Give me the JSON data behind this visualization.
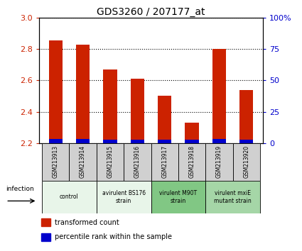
{
  "title": "GDS3260 / 207177_at",
  "samples": [
    "GSM213913",
    "GSM213914",
    "GSM213915",
    "GSM213916",
    "GSM213917",
    "GSM213918",
    "GSM213919",
    "GSM213920"
  ],
  "red_values": [
    2.855,
    2.825,
    2.67,
    2.61,
    2.5,
    2.33,
    2.8,
    2.54
  ],
  "blue_values_pct": [
    3.5,
    3.0,
    2.5,
    2.5,
    2.5,
    2.5,
    3.5,
    2.5
  ],
  "ylim_left": [
    2.2,
    3.0
  ],
  "ylim_right": [
    0,
    100
  ],
  "yticks_left": [
    2.2,
    2.4,
    2.6,
    2.8,
    3.0
  ],
  "yticks_right": [
    0,
    25,
    50,
    75,
    100
  ],
  "ytick_labels_right": [
    "0",
    "25",
    "50",
    "75",
    "100%"
  ],
  "groups": [
    {
      "label": "control",
      "start": 0,
      "end": 2,
      "color": "#e8f5e9"
    },
    {
      "label": "avirulent BS176\nstrain",
      "start": 2,
      "end": 4,
      "color": "#e8f5e9"
    },
    {
      "label": "virulent M90T\nstrain",
      "start": 4,
      "end": 6,
      "color": "#81c784"
    },
    {
      "label": "virulent mxiE\nmutant strain",
      "start": 6,
      "end": 8,
      "color": "#a5d6a7"
    }
  ],
  "bar_width": 0.5,
  "red_color": "#cc2200",
  "blue_color": "#0000cc",
  "grid_color": "#000000",
  "sample_box_color": "#d0d0d0",
  "legend_red": "transformed count",
  "legend_blue": "percentile rank within the sample",
  "infection_label": "infection",
  "title_fontsize": 10,
  "axis_fontsize": 8
}
